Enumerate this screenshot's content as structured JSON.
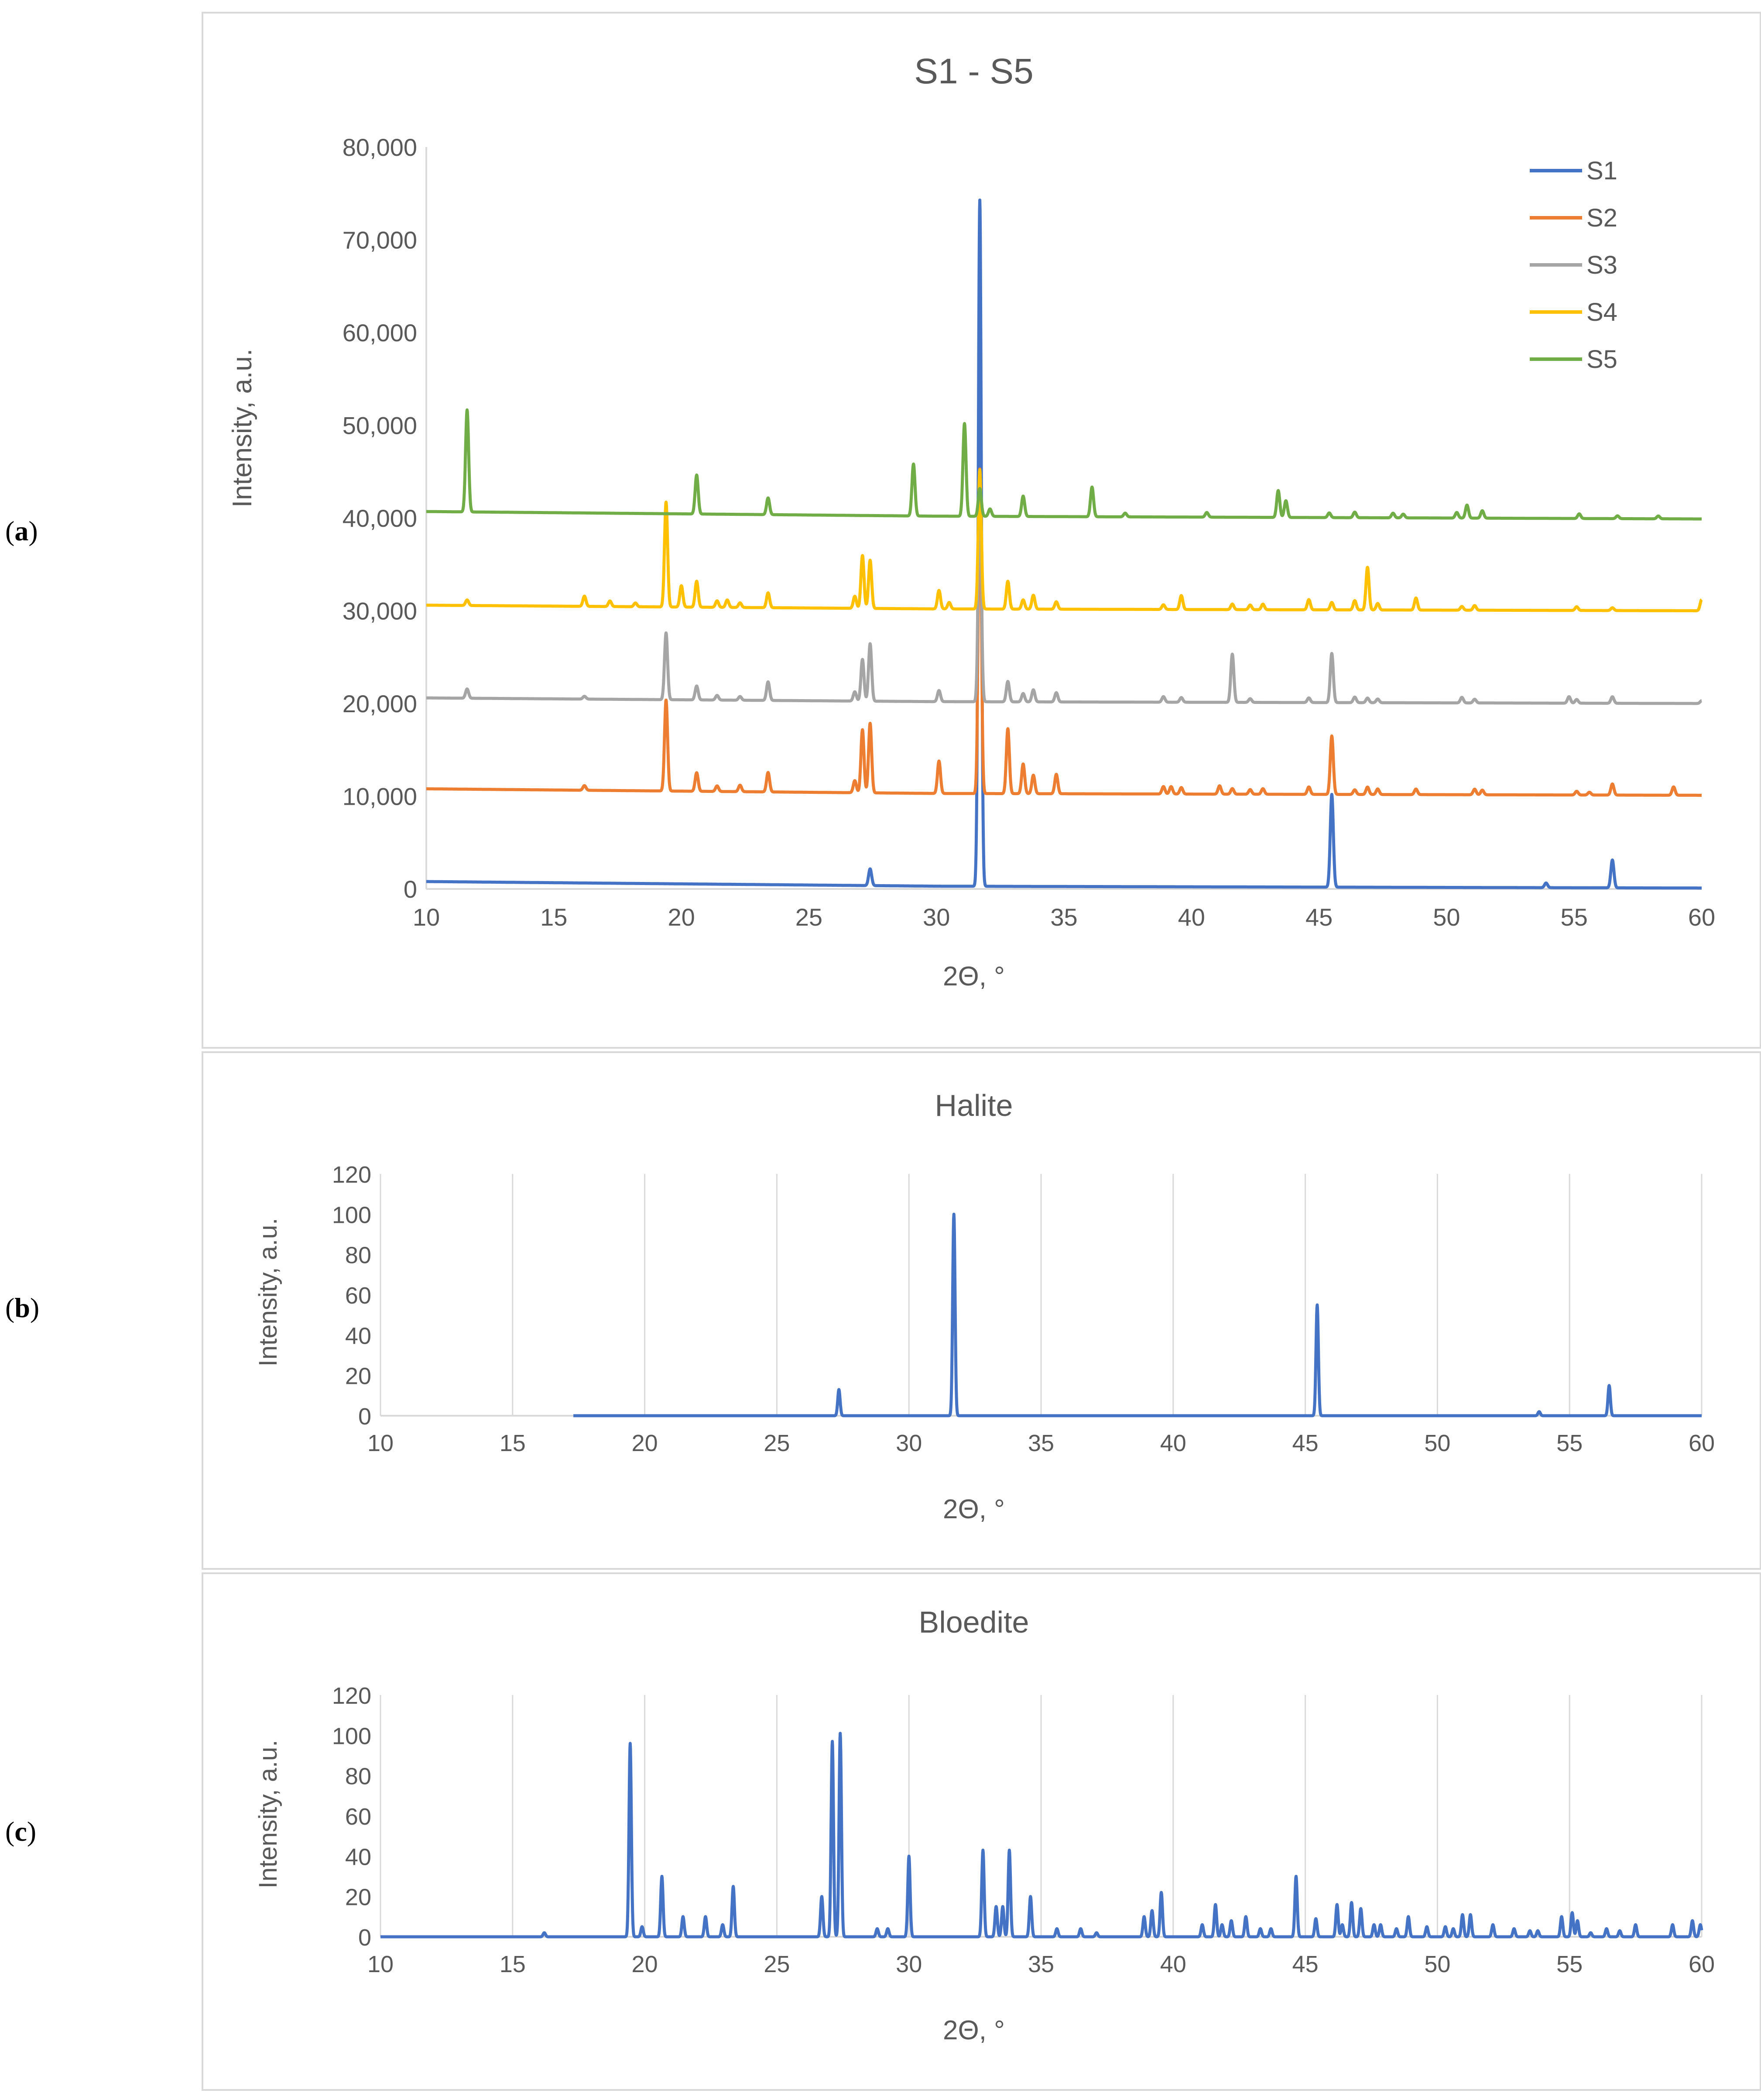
{
  "figure_labels": {
    "a": {
      "open": "(",
      "letter": "a",
      "close": ")"
    },
    "b": {
      "open": "(",
      "letter": "b",
      "close": ")"
    },
    "c": {
      "open": "(",
      "letter": "c",
      "close": ")"
    }
  },
  "chart_data": [
    {
      "id": "a",
      "type": "line",
      "title": "S1 - S5",
      "xlabel": "2Θ, °",
      "ylabel": "Intensity, a.u.",
      "xlim": [
        10,
        60
      ],
      "ylim": [
        0,
        80000
      ],
      "xticks": [
        10,
        15,
        20,
        25,
        30,
        35,
        40,
        45,
        50,
        55,
        60
      ],
      "yticks": [
        0,
        10000,
        20000,
        30000,
        40000,
        50000,
        60000,
        70000,
        80000
      ],
      "ytick_labels": [
        "0",
        "10,000",
        "20,000",
        "30,000",
        "40,000",
        "50,000",
        "60,000",
        "70,000",
        "80,000"
      ],
      "gridlines": false,
      "legend_position": "top-right",
      "series": [
        {
          "name": "S1",
          "color": "#4472C4",
          "baseline": [
            [
              10,
              800
            ],
            [
              30,
              300
            ],
            [
              60,
              100
            ]
          ],
          "peaks": [
            [
              27.4,
              1800
            ],
            [
              31.7,
              74000
            ],
            [
              45.5,
              10000
            ],
            [
              53.9,
              500
            ],
            [
              56.5,
              3000
            ]
          ]
        },
        {
          "name": "S2",
          "color": "#ED7D31",
          "baseline": [
            [
              10,
              10800
            ],
            [
              30,
              10300
            ],
            [
              60,
              10100
            ]
          ],
          "peaks": [
            [
              16.2,
              500
            ],
            [
              19.4,
              9800
            ],
            [
              20.6,
              2000
            ],
            [
              21.4,
              600
            ],
            [
              22.3,
              700
            ],
            [
              23.4,
              2100
            ],
            [
              26.8,
              1300
            ],
            [
              27.1,
              6800
            ],
            [
              27.4,
              7500
            ],
            [
              30.1,
              3500
            ],
            [
              31.7,
              35000
            ],
            [
              32.8,
              7000
            ],
            [
              33.4,
              3200
            ],
            [
              33.8,
              2000
            ],
            [
              34.7,
              2100
            ],
            [
              38.9,
              800
            ],
            [
              39.2,
              800
            ],
            [
              39.6,
              700
            ],
            [
              41.1,
              900
            ],
            [
              41.6,
              600
            ],
            [
              42.3,
              500
            ],
            [
              42.8,
              600
            ],
            [
              44.6,
              800
            ],
            [
              45.5,
              6300
            ],
            [
              46.4,
              500
            ],
            [
              46.9,
              800
            ],
            [
              47.3,
              600
            ],
            [
              48.8,
              600
            ],
            [
              51.1,
              600
            ],
            [
              51.4,
              500
            ],
            [
              55.1,
              400
            ],
            [
              55.6,
              300
            ],
            [
              56.5,
              1200
            ],
            [
              58.9,
              900
            ]
          ]
        },
        {
          "name": "S3",
          "color": "#A5A5A5",
          "baseline": [
            [
              10,
              20600
            ],
            [
              30,
              20200
            ],
            [
              60,
              20000
            ]
          ],
          "peaks": [
            [
              11.6,
              1000
            ],
            [
              16.2,
              300
            ],
            [
              19.4,
              7200
            ],
            [
              20.6,
              1500
            ],
            [
              21.4,
              500
            ],
            [
              22.3,
              400
            ],
            [
              23.4,
              2000
            ],
            [
              26.8,
              1000
            ],
            [
              27.1,
              4500
            ],
            [
              27.4,
              6200
            ],
            [
              30.1,
              1200
            ],
            [
              31.7,
              25000
            ],
            [
              32.8,
              2200
            ],
            [
              33.4,
              900
            ],
            [
              33.8,
              1300
            ],
            [
              34.7,
              1000
            ],
            [
              38.9,
              600
            ],
            [
              39.6,
              500
            ],
            [
              41.6,
              5200
            ],
            [
              42.3,
              400
            ],
            [
              44.6,
              500
            ],
            [
              45.5,
              5300
            ],
            [
              46.4,
              600
            ],
            [
              46.9,
              500
            ],
            [
              47.3,
              400
            ],
            [
              50.6,
              600
            ],
            [
              51.1,
              400
            ],
            [
              54.8,
              700
            ],
            [
              55.1,
              400
            ],
            [
              56.5,
              700
            ],
            [
              60.0,
              300
            ]
          ]
        },
        {
          "name": "S4",
          "color": "#FFC000",
          "baseline": [
            [
              10,
              30600
            ],
            [
              30,
              30200
            ],
            [
              60,
              30000
            ]
          ],
          "peaks": [
            [
              11.6,
              600
            ],
            [
              16.2,
              1100
            ],
            [
              17.2,
              600
            ],
            [
              18.2,
              400
            ],
            [
              19.4,
              11300
            ],
            [
              20.0,
              2300
            ],
            [
              20.6,
              2800
            ],
            [
              21.4,
              700
            ],
            [
              21.8,
              800
            ],
            [
              22.3,
              500
            ],
            [
              23.4,
              1600
            ],
            [
              26.8,
              1300
            ],
            [
              27.1,
              5700
            ],
            [
              27.4,
              5200
            ],
            [
              30.1,
              2000
            ],
            [
              30.5,
              700
            ],
            [
              31.7,
              15000
            ],
            [
              32.8,
              3000
            ],
            [
              33.4,
              1000
            ],
            [
              33.8,
              1500
            ],
            [
              34.7,
              800
            ],
            [
              38.9,
              500
            ],
            [
              39.6,
              1500
            ],
            [
              41.6,
              600
            ],
            [
              42.3,
              500
            ],
            [
              42.8,
              600
            ],
            [
              44.6,
              1100
            ],
            [
              45.5,
              800
            ],
            [
              46.4,
              1000
            ],
            [
              46.9,
              4600
            ],
            [
              47.3,
              700
            ],
            [
              48.8,
              1300
            ],
            [
              50.6,
              400
            ],
            [
              51.1,
              500
            ],
            [
              55.1,
              400
            ],
            [
              56.5,
              300
            ],
            [
              60.0,
              1200
            ]
          ]
        },
        {
          "name": "S5",
          "color": "#70AD47",
          "baseline": [
            [
              10,
              40700
            ],
            [
              30,
              40200
            ],
            [
              60,
              39900
            ]
          ],
          "peaks": [
            [
              11.6,
              11000
            ],
            [
              20.6,
              4200
            ],
            [
              23.4,
              1800
            ],
            [
              29.1,
              5600
            ],
            [
              31.1,
              10000
            ],
            [
              31.7,
              3000
            ],
            [
              32.1,
              800
            ],
            [
              33.4,
              2200
            ],
            [
              36.1,
              3200
            ],
            [
              37.4,
              400
            ],
            [
              40.6,
              500
            ],
            [
              43.4,
              2900
            ],
            [
              43.7,
              1800
            ],
            [
              45.4,
              500
            ],
            [
              46.4,
              600
            ],
            [
              47.9,
              500
            ],
            [
              48.3,
              400
            ],
            [
              50.4,
              600
            ],
            [
              50.8,
              1400
            ],
            [
              51.4,
              800
            ],
            [
              55.2,
              500
            ],
            [
              56.7,
              300
            ],
            [
              58.3,
              300
            ]
          ]
        }
      ]
    },
    {
      "id": "b",
      "type": "line",
      "title": "Halite",
      "xlabel": "2Θ, °",
      "ylabel": "Intensity, a.u.",
      "xlim": [
        10,
        60
      ],
      "ylim": [
        0,
        120
      ],
      "xticks": [
        10,
        15,
        20,
        25,
        30,
        35,
        40,
        45,
        50,
        55,
        60
      ],
      "yticks": [
        0,
        20,
        40,
        60,
        80,
        100,
        120
      ],
      "ytick_labels": [
        "0",
        "20",
        "40",
        "60",
        "80",
        "100",
        "120"
      ],
      "gridlines": true,
      "data_start": 17.3,
      "series": [
        {
          "name": "Halite",
          "color": "#4472C4",
          "baseline": [
            [
              17.3,
              0
            ],
            [
              60,
              0
            ]
          ],
          "peaks": [
            [
              27.35,
              13
            ],
            [
              31.7,
              100
            ],
            [
              45.45,
              55
            ],
            [
              53.85,
              2
            ],
            [
              56.5,
              15
            ]
          ]
        }
      ]
    },
    {
      "id": "c",
      "type": "line",
      "title": "Bloedite",
      "xlabel": "2Θ, °",
      "ylabel": "Intensity, a.u.",
      "xlim": [
        10,
        60
      ],
      "ylim": [
        0,
        120
      ],
      "xticks": [
        10,
        15,
        20,
        25,
        30,
        35,
        40,
        45,
        50,
        55,
        60
      ],
      "yticks": [
        0,
        20,
        40,
        60,
        80,
        100,
        120
      ],
      "ytick_labels": [
        "0",
        "20",
        "40",
        "60",
        "80",
        "100",
        "120"
      ],
      "gridlines": true,
      "series": [
        {
          "name": "Bloedite",
          "color": "#4472C4",
          "baseline": [
            [
              10,
              0
            ],
            [
              60,
              0
            ]
          ],
          "peaks": [
            [
              16.2,
              2
            ],
            [
              19.45,
              96
            ],
            [
              19.9,
              5
            ],
            [
              20.65,
              30
            ],
            [
              21.45,
              10
            ],
            [
              22.3,
              10
            ],
            [
              22.95,
              6
            ],
            [
              23.35,
              25
            ],
            [
              26.7,
              20
            ],
            [
              27.1,
              97
            ],
            [
              27.4,
              101
            ],
            [
              28.8,
              4
            ],
            [
              29.2,
              4
            ],
            [
              30.0,
              40
            ],
            [
              32.8,
              43
            ],
            [
              33.3,
              15
            ],
            [
              33.55,
              15
            ],
            [
              33.8,
              43
            ],
            [
              34.6,
              20
            ],
            [
              35.6,
              4
            ],
            [
              36.5,
              4
            ],
            [
              37.1,
              2
            ],
            [
              38.9,
              10
            ],
            [
              39.2,
              13
            ],
            [
              39.55,
              22
            ],
            [
              41.1,
              6
            ],
            [
              41.6,
              16
            ],
            [
              41.85,
              6
            ],
            [
              42.2,
              8
            ],
            [
              42.75,
              10
            ],
            [
              43.3,
              4
            ],
            [
              43.7,
              4
            ],
            [
              44.65,
              30
            ],
            [
              45.4,
              9
            ],
            [
              46.2,
              16
            ],
            [
              46.4,
              6
            ],
            [
              46.75,
              17
            ],
            [
              47.1,
              14
            ],
            [
              47.6,
              6
            ],
            [
              47.85,
              6
            ],
            [
              48.45,
              4
            ],
            [
              48.9,
              10
            ],
            [
              49.6,
              5
            ],
            [
              50.3,
              5
            ],
            [
              50.6,
              4
            ],
            [
              50.95,
              11
            ],
            [
              51.25,
              11
            ],
            [
              52.1,
              6
            ],
            [
              52.9,
              4
            ],
            [
              53.5,
              3
            ],
            [
              53.8,
              3
            ],
            [
              54.7,
              10
            ],
            [
              55.1,
              12
            ],
            [
              55.3,
              8
            ],
            [
              55.8,
              2
            ],
            [
              56.4,
              4
            ],
            [
              56.9,
              3
            ],
            [
              57.5,
              6
            ],
            [
              58.9,
              6
            ],
            [
              59.65,
              8
            ],
            [
              59.95,
              6
            ]
          ]
        }
      ]
    }
  ]
}
